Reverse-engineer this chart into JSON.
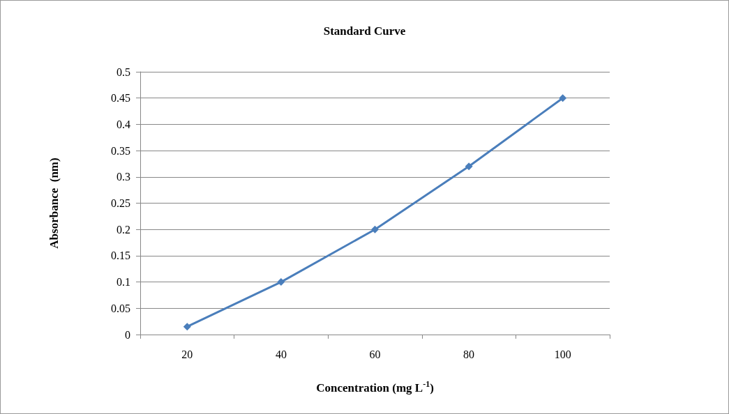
{
  "chart_data": {
    "type": "line",
    "title": "Standard Curve",
    "xlabel": "Concentration (mg L$^{-1}$)",
    "ylabel": "Absorbance  (nm)",
    "categories": [
      "20",
      "40",
      "60",
      "80",
      "100"
    ],
    "series": [
      {
        "color": "#4a7ebb",
        "values": [
          0.015,
          0.1,
          0.2,
          0.32,
          0.45
        ]
      }
    ],
    "ylim": [
      0,
      0.5
    ],
    "yticks": [
      0,
      0.05,
      0.1,
      0.15,
      0.2,
      0.25,
      0.3,
      0.35,
      0.4,
      0.45,
      0.5
    ],
    "grid": "y",
    "marker": "diamond",
    "line_style": "solid"
  }
}
